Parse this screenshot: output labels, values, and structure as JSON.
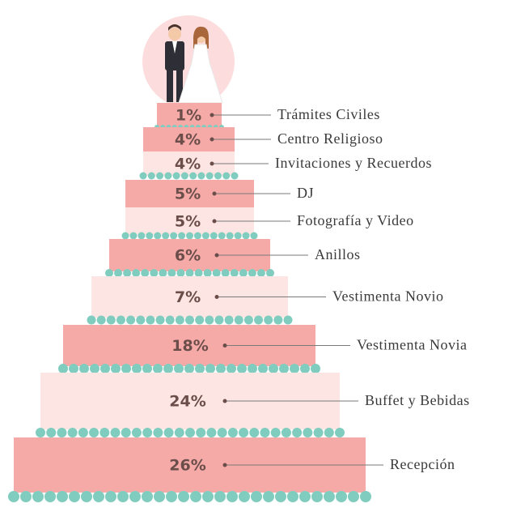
{
  "chart_data": {
    "type": "cake",
    "categories": [
      "Trámites Civiles",
      "Centro Religioso",
      "Invitaciones y Recuerdos",
      "DJ",
      "Fotografía y Video",
      "Anillos",
      "Vestimenta Novio",
      "Vestimenta Novia",
      "Buffet y Bebidas",
      "Recepción"
    ],
    "values": [
      1,
      4,
      4,
      5,
      5,
      6,
      7,
      18,
      24,
      26
    ],
    "value_labels": [
      "1%",
      "4%",
      "4%",
      "5%",
      "5%",
      "6%",
      "7%",
      "18%",
      "24%",
      "26%"
    ]
  }
}
